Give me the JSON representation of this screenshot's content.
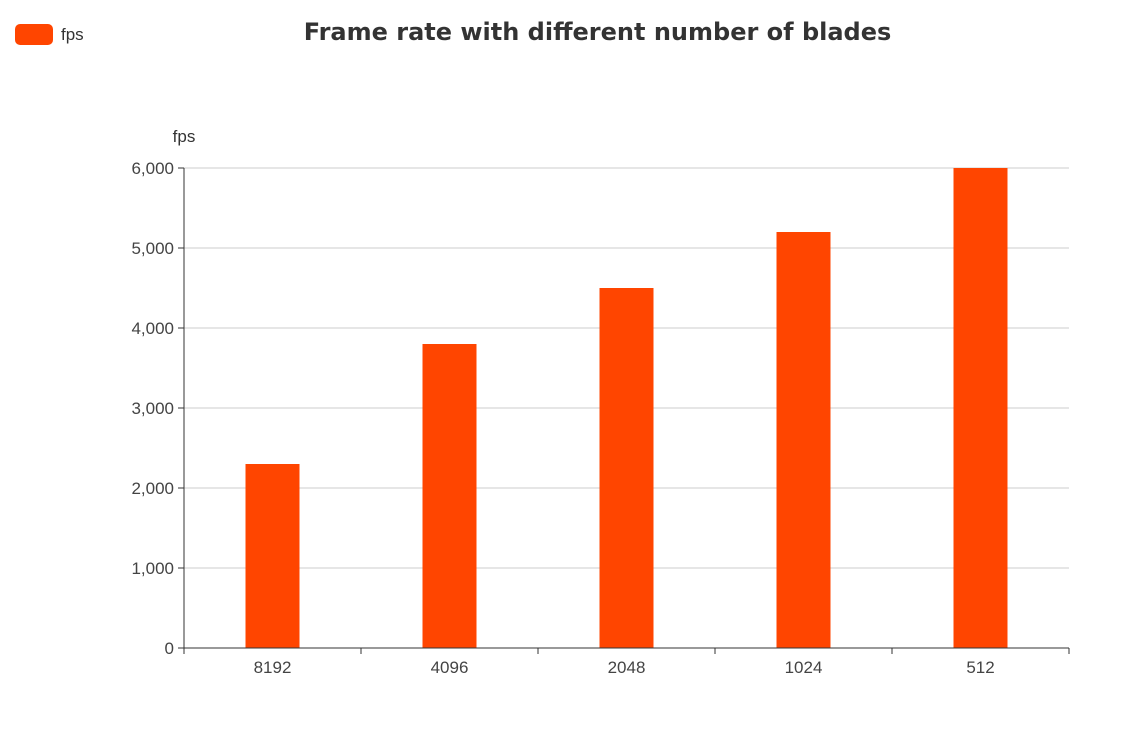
{
  "chart_data": {
    "type": "bar",
    "title": "Frame rate with different number of blades",
    "legend": {
      "entries": [
        "fps"
      ],
      "placement": "top-left"
    },
    "ylabel": "fps",
    "xlabel": "",
    "categories": [
      "8192",
      "4096",
      "2048",
      "1024",
      "512"
    ],
    "series": [
      {
        "name": "fps",
        "values": [
          2300,
          3800,
          4500,
          5200,
          6000
        ]
      }
    ],
    "ylim": [
      0,
      6000
    ],
    "yticks": [
      "0",
      "1,000",
      "2,000",
      "3,000",
      "4,000",
      "5,000",
      "6,000"
    ],
    "grid": true,
    "colors": {
      "bar": "#ff4500",
      "grid": "#cccccc",
      "axis": "#333333"
    }
  }
}
